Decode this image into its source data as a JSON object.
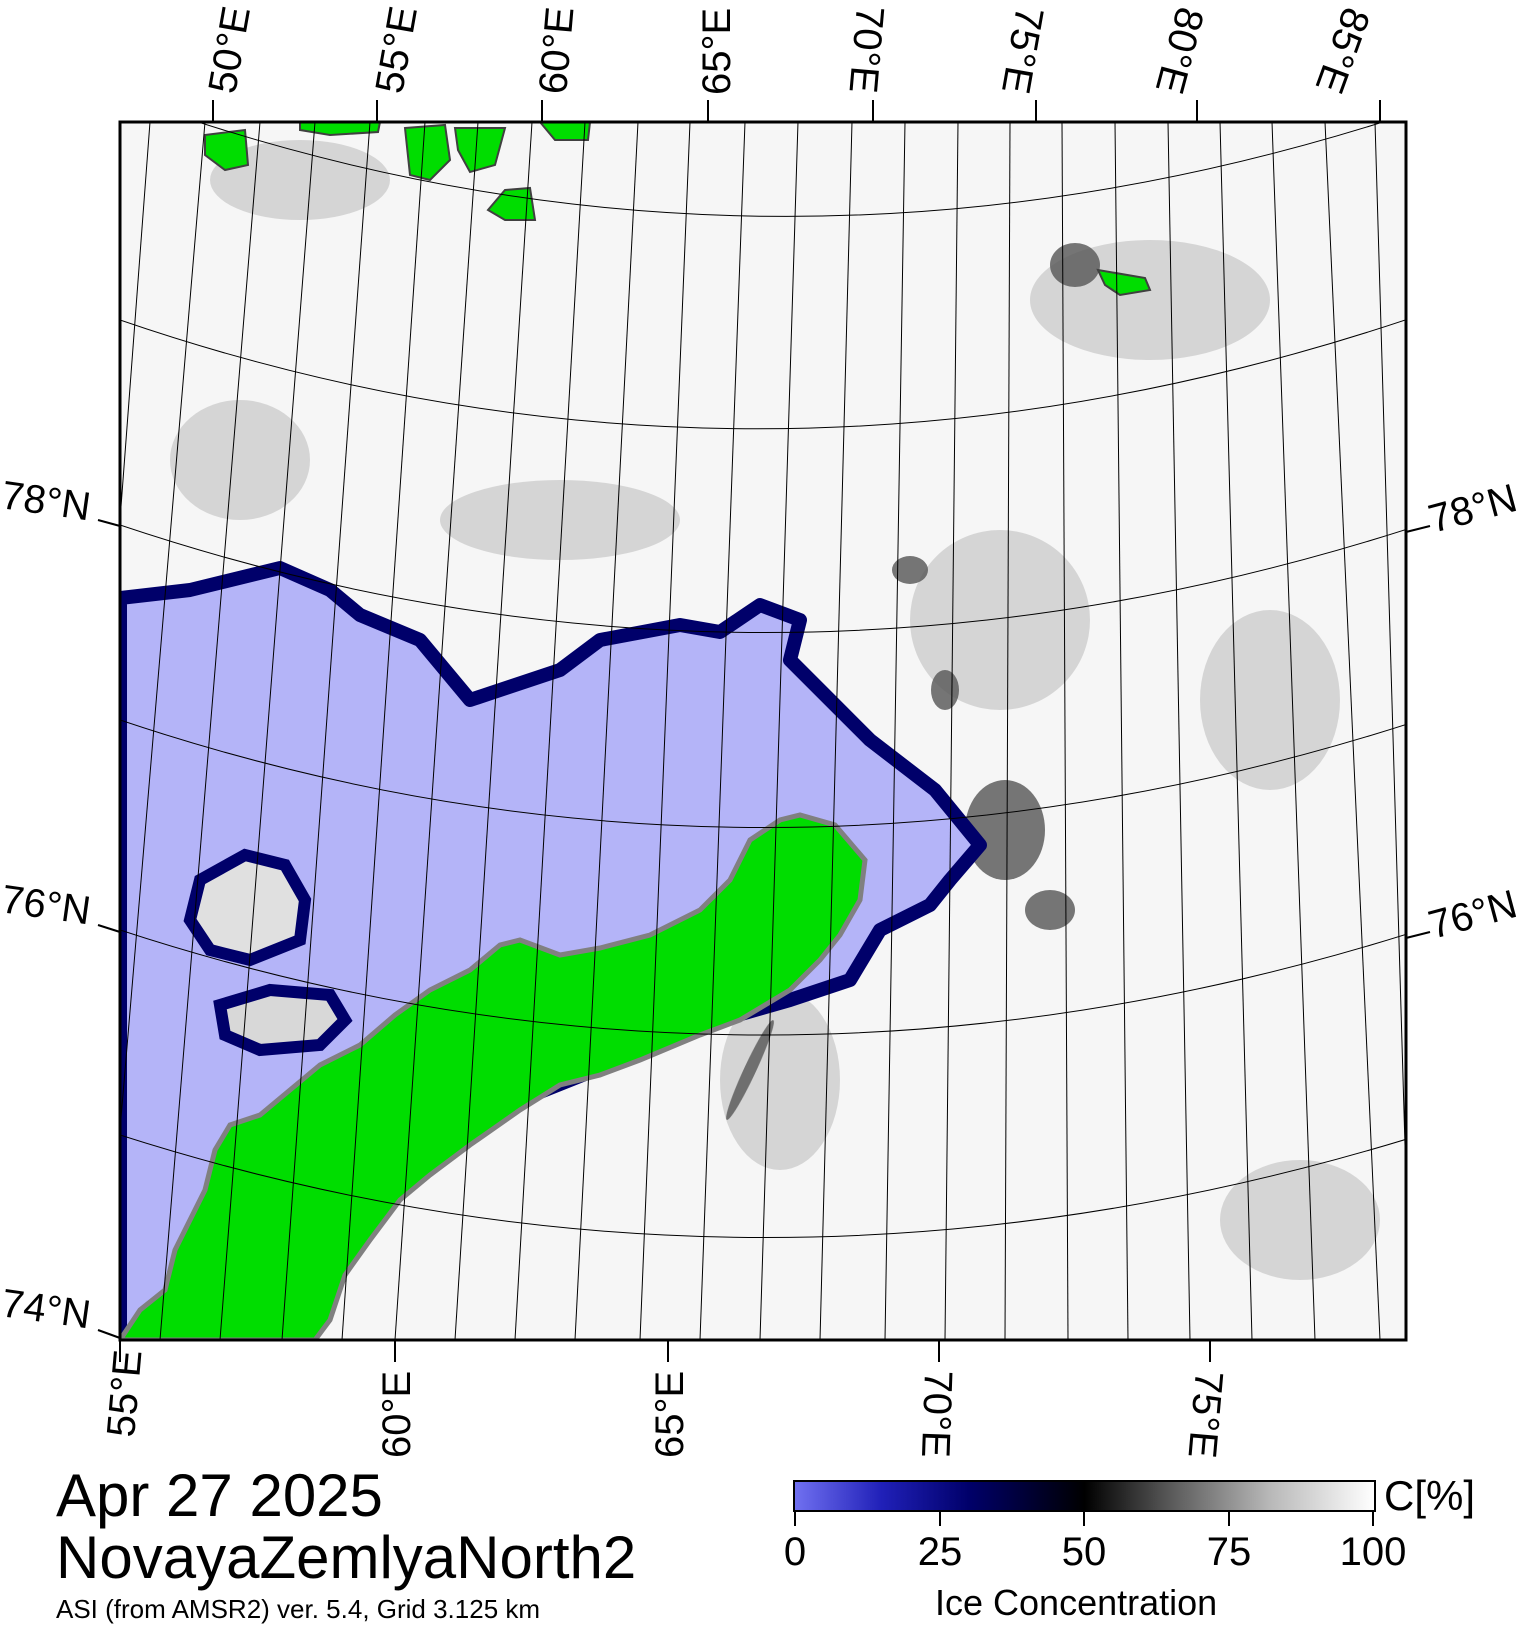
{
  "map": {
    "date": "Apr 27 2025",
    "region": "NovayaZemlyaNorth2",
    "subtitle": "ASI (from AMSR2) ver. 5.4,  Grid 3.125 km",
    "top_lon_labels": [
      "50°E",
      "55°E",
      "60°E",
      "65°E",
      "70°E",
      "75°E",
      "80°E",
      "85°E"
    ],
    "bottom_lon_labels": [
      "55°E",
      "60°E",
      "65°E",
      "70°E",
      "75°E"
    ],
    "left_lat_labels": [
      "78°N",
      "76°N",
      "74°N"
    ],
    "right_lat_labels": [
      "78°N",
      "76°N"
    ],
    "colors": {
      "land": "#00dd00",
      "open_water": "#b4b4f8",
      "coast_mask": "#808080",
      "ice_low": "#00006a"
    }
  },
  "colorbar": {
    "title": "Ice Concentration",
    "unit": "C[%]",
    "ticks": [
      "0",
      "25",
      "50",
      "75",
      "100"
    ]
  }
}
